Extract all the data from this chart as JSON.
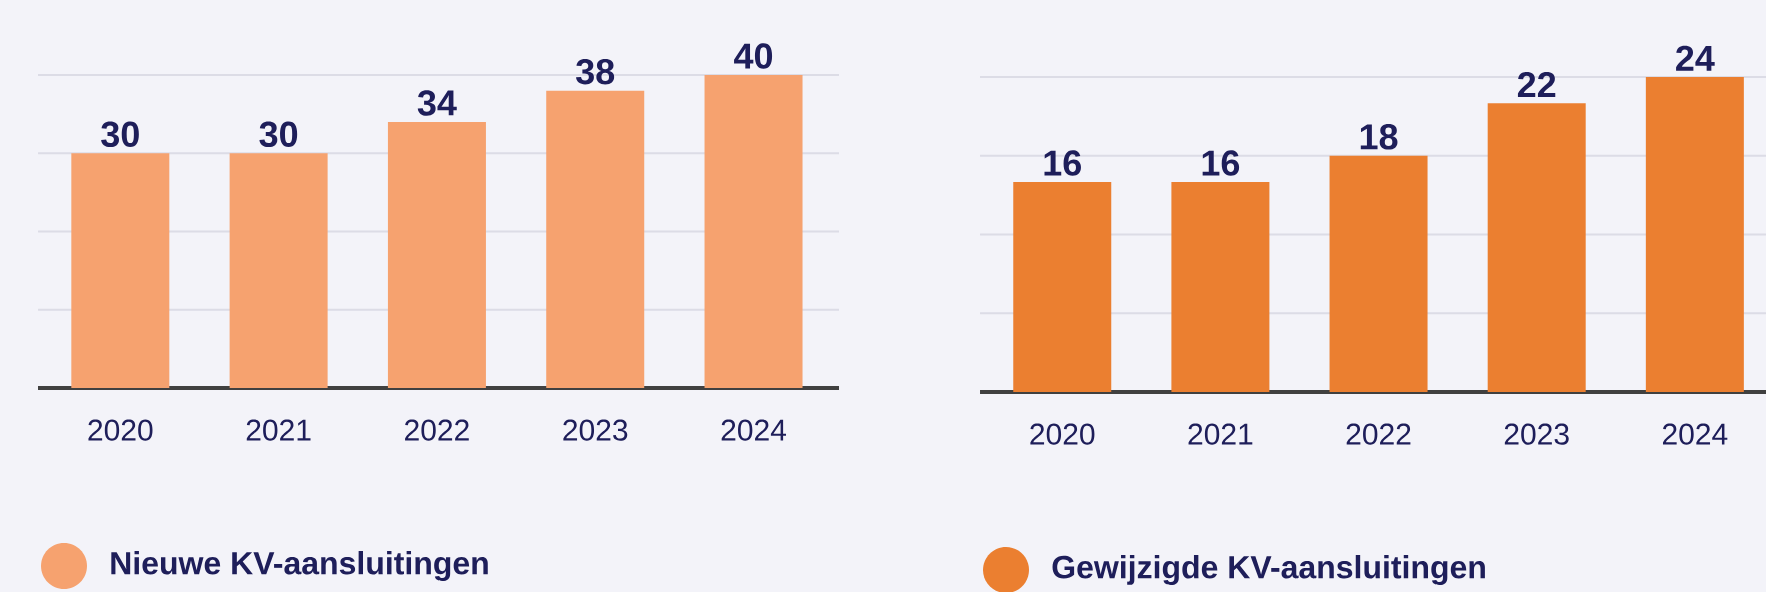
{
  "chart_data": [
    {
      "type": "bar",
      "categories": [
        "2020",
        "2021",
        "2022",
        "2023",
        "2024"
      ],
      "series": [
        {
          "name": "Nieuwe KV-aansluitingen",
          "color": "#f6a26f",
          "values": [
            30,
            30,
            34,
            38,
            40
          ]
        }
      ],
      "ylim": [
        0,
        40
      ],
      "yticks": [
        {
          "value": 10,
          "label": null
        },
        {
          "value": 20,
          "label": null
        },
        {
          "value": 30,
          "label": null
        },
        {
          "value": 40,
          "label": null
        }
      ],
      "grid": "y",
      "data_labels": true,
      "legend": "bottom",
      "tick_labels": "x"
    },
    {
      "type": "bar",
      "categories": [
        "2020",
        "2021",
        "2022",
        "2023",
        "2024"
      ],
      "series": [
        {
          "name": "Gewijzigde KV-aansluitingen",
          "color": "#eb7f30",
          "values": [
            16,
            16,
            18,
            22,
            24
          ]
        }
      ],
      "ylim": [
        0,
        24
      ],
      "yticks": [
        {
          "value": 6,
          "label": null
        },
        {
          "value": 12,
          "label": null
        },
        {
          "value": 18,
          "label": null
        },
        {
          "value": 24,
          "label": null
        }
      ],
      "grid": "y",
      "data_labels": true,
      "legend": "bottom",
      "tick_labels": "x"
    }
  ]
}
